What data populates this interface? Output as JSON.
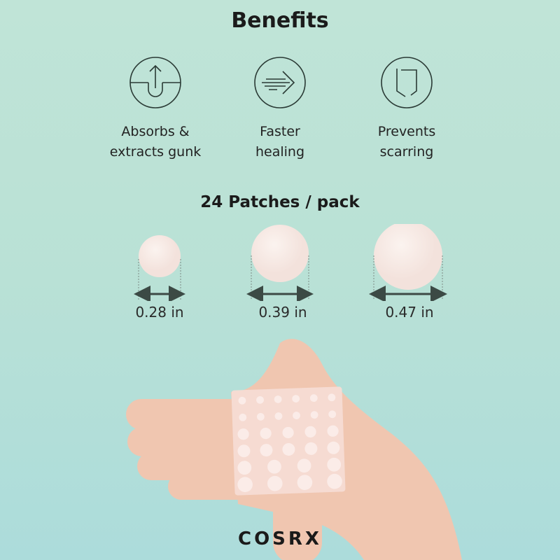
{
  "title": "Benefits",
  "benefits": [
    {
      "icon": "extract-icon",
      "label_line1": "Absorbs &",
      "label_line2": "extracts gunk"
    },
    {
      "icon": "fast-arrow-icon",
      "label_line1": "Faster",
      "label_line2": "healing"
    },
    {
      "icon": "shield-icon",
      "label_line1": "Prevents",
      "label_line2": "scarring"
    }
  ],
  "pack_label": "24 Patches / pack",
  "sizes": [
    "0.28 in",
    "0.39 in",
    "0.47 in"
  ],
  "brand": "COSRX",
  "colors": {
    "background": "#bfe3d7",
    "patch": "#f7ebe6",
    "skin": "#f0c6b0"
  }
}
